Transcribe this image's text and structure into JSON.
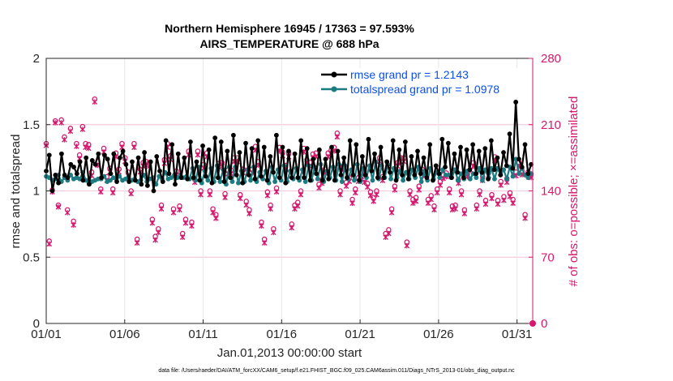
{
  "chart_data": {
    "type": "line",
    "title": "Northern Hemisphere 16945 / 17363 = 97.593%",
    "subtitle": "AIRS_TEMPERATURE @ 688 hPa",
    "xlabel": "Jan.01,2013 00:00:00 start",
    "ylabel": "rmse and totalspread",
    "y2label": "# of obs: o=possible; ×=assimilated",
    "xlim": [
      0,
      31
    ],
    "ylim": [
      0,
      2
    ],
    "y2lim": [
      0,
      280
    ],
    "x_ticks": [
      0,
      5,
      10,
      15,
      20,
      25,
      30
    ],
    "x_tick_labels": [
      "01/01",
      "01/06",
      "01/11",
      "01/16",
      "01/21",
      "01/26",
      "01/31"
    ],
    "y_ticks": [
      0,
      0.5,
      1,
      1.5,
      2
    ],
    "y_tick_labels": [
      "0",
      "0.5",
      "1",
      "1.5",
      "2"
    ],
    "y2_ticks": [
      0,
      70,
      140,
      210,
      280
    ],
    "y2_tick_labels": [
      "0",
      "70",
      "140",
      "210",
      "280"
    ],
    "grid": true,
    "legend_position": "top-right",
    "series": [
      {
        "name": "rmse grand pr = 1.2143",
        "axis": "left",
        "color": "#000000",
        "values": [
          1.15,
          1.27,
          1.0,
          1.12,
          1.06,
          1.28,
          1.12,
          1.1,
          1.2,
          1.18,
          1.13,
          1.22,
          1.08,
          1.25,
          1.05,
          1.23,
          1.2,
          1.28,
          1.1,
          1.27,
          1.24,
          1.13,
          1.28,
          1.07,
          1.25,
          1.3,
          1.2,
          1.07,
          1.22,
          1.08,
          1.25,
          1.05,
          1.29,
          1.04,
          1.22,
          1.0,
          1.26,
          1.15,
          1.07,
          1.38,
          1.13,
          1.35,
          1.05,
          1.28,
          1.1,
          1.25,
          1.09,
          1.37,
          1.1,
          1.22,
          1.08,
          1.34,
          1.11,
          1.31,
          1.06,
          1.4,
          1.1,
          1.37,
          1.07,
          1.3,
          1.1,
          1.42,
          1.12,
          1.29,
          1.06,
          1.36,
          1.12,
          1.32,
          1.09,
          1.38,
          1.11,
          1.33,
          1.08,
          1.26,
          1.14,
          1.42,
          1.1,
          1.33,
          1.06,
          1.3,
          1.1,
          1.28,
          1.1,
          1.38,
          1.1,
          1.32,
          1.08,
          1.24,
          1.13,
          1.31,
          1.08,
          1.24,
          1.09,
          1.33,
          1.08,
          1.3,
          1.12,
          1.25,
          1.1,
          1.38,
          1.12,
          1.35,
          1.08,
          1.26,
          1.12,
          1.39,
          1.15,
          1.28,
          1.1,
          1.33,
          1.1,
          1.22,
          1.14,
          1.38,
          1.08,
          1.31,
          1.12,
          1.37,
          1.09,
          1.26,
          1.12,
          1.3,
          1.13,
          1.25,
          1.1,
          1.35,
          1.08,
          1.19,
          1.13,
          1.39,
          1.18,
          1.36,
          1.1,
          1.28,
          1.14,
          1.33,
          1.1,
          1.31,
          1.16,
          1.35,
          1.13,
          1.3,
          1.14,
          1.32,
          1.09,
          1.38,
          1.16,
          1.25,
          1.12,
          1.29,
          1.19,
          1.43,
          1.17,
          1.67,
          1.24,
          1.18,
          1.35,
          1.13,
          1.2
        ]
      },
      {
        "name": "totalspread grand pr = 1.0978",
        "axis": "left",
        "color": "#1b7b80",
        "values": [
          1.11,
          1.1,
          1.08,
          1.09,
          1.12,
          1.07,
          1.1,
          1.08,
          1.12,
          1.09,
          1.1,
          1.09,
          1.14,
          1.08,
          1.06,
          1.07,
          1.08,
          1.09,
          1.09,
          1.11,
          1.07,
          1.08,
          1.1,
          1.09,
          1.11,
          1.08,
          1.09,
          1.11,
          1.08,
          1.09,
          1.07,
          1.08,
          1.12,
          1.07,
          1.09,
          1.1,
          1.05,
          1.11,
          1.09,
          1.14,
          1.09,
          1.1,
          1.12,
          1.1,
          1.12,
          1.1,
          1.11,
          1.09,
          1.17,
          1.08,
          1.18,
          1.06,
          1.15,
          1.08,
          1.17,
          1.07,
          1.19,
          1.07,
          1.16,
          1.05,
          1.18,
          1.07,
          1.18,
          1.06,
          1.15,
          1.07,
          1.16,
          1.08,
          1.18,
          1.07,
          1.14,
          1.09,
          1.15,
          1.06,
          1.18,
          1.07,
          1.16,
          1.08,
          1.19,
          1.07,
          1.15,
          1.09,
          1.17,
          1.08,
          1.16,
          1.07,
          1.19,
          1.08,
          1.18,
          1.09,
          1.2,
          1.07,
          1.15,
          1.1,
          1.18,
          1.08,
          1.2,
          1.07,
          1.19,
          1.09,
          1.16,
          1.08,
          1.2,
          1.07,
          1.17,
          1.1,
          1.19,
          1.08,
          1.22,
          1.09,
          1.19,
          1.1,
          1.2,
          1.09,
          1.17,
          1.1,
          1.15,
          1.08,
          1.14,
          1.09,
          1.16,
          1.1,
          1.18,
          1.07,
          1.15,
          1.08,
          1.17,
          1.09,
          1.14,
          1.1,
          1.16,
          1.12,
          1.12,
          1.1,
          1.16,
          1.08,
          1.13,
          1.09,
          1.15,
          1.09,
          1.13,
          1.1,
          1.17,
          1.08,
          1.16,
          1.1,
          1.17,
          1.09,
          1.17,
          1.12,
          1.16,
          1.09,
          1.18,
          1.11,
          1.24,
          1.13,
          1.17,
          1.12,
          1.1,
          1.13
        ]
      },
      {
        "name": "obs possible",
        "axis": "right",
        "color": "#d6186f",
        "marker": "circle",
        "values": [
          190,
          87,
          141,
          214,
          125,
          215,
          197,
          120,
          206,
          108,
          190,
          178,
          208,
          190,
          189,
          160,
          237,
          171,
          142,
          185,
          155,
          164,
          142,
          180,
          163,
          190,
          175,
          160,
          140,
          190,
          89,
          163,
          170,
          171,
          170,
          110,
          92,
          100,
          125,
          173,
          190,
          177,
          121,
          161,
          124,
          95,
          110,
          182,
          107,
          153,
          182,
          140,
          168,
          180,
          140,
          121,
          115,
          169,
          170,
          137,
          162,
          162,
          175,
          175,
          136,
          163,
          129,
          120,
          163,
          187,
          171,
          107,
          89,
          139,
          125,
          100,
          143,
          186,
          181,
          167,
          180,
          105,
          125,
          128,
          140,
          185,
          173,
          170,
          179,
          180,
          147,
          152,
          163,
          180,
          183,
          186,
          201,
          140,
          166,
          149,
          154,
          131,
          142,
          154,
          159,
          153,
          148,
          139,
          133,
          140,
          175,
          155,
          95,
          99,
          121,
          145,
          170,
          175,
          175,
          86,
          140,
          131,
          133,
          145,
          163,
          160,
          131,
          135,
          124,
          142,
          150,
          157,
          159,
          142,
          124,
          125,
          152,
          140,
          120,
          159,
          166,
          170,
          125,
          140,
          155,
          130,
          160,
          136,
          176,
          130,
          150,
          134,
          153,
          138,
          131,
          160,
          170,
          161,
          115,
          160,
          158
        ]
      },
      {
        "name": "obs assimilated",
        "axis": "right",
        "color": "#d6186f",
        "marker": "x",
        "values": [
          188,
          84,
          139,
          212,
          123,
          212,
          194,
          117,
          203,
          104,
          187,
          174,
          205,
          186,
          185,
          156,
          234,
          167,
          139,
          181,
          151,
          160,
          138,
          176,
          160,
          186,
          171,
          156,
          137,
          186,
          85,
          160,
          166,
          167,
          166,
          106,
          88,
          96,
          121,
          169,
          186,
          173,
          117,
          157,
          120,
          91,
          106,
          178,
          103,
          149,
          178,
          136,
          164,
          176,
          136,
          117,
          111,
          165,
          166,
          133,
          158,
          158,
          171,
          171,
          132,
          159,
          125,
          116,
          159,
          183,
          167,
          103,
          85,
          135,
          121,
          96,
          139,
          182,
          177,
          163,
          176,
          101,
          121,
          124,
          136,
          181,
          169,
          166,
          175,
          176,
          143,
          148,
          159,
          176,
          179,
          182,
          197,
          136,
          162,
          145,
          150,
          127,
          138,
          150,
          155,
          149,
          144,
          135,
          129,
          136,
          171,
          151,
          91,
          95,
          117,
          141,
          166,
          171,
          171,
          82,
          136,
          127,
          129,
          141,
          159,
          156,
          127,
          131,
          120,
          138,
          146,
          153,
          155,
          138,
          120,
          121,
          148,
          136,
          116,
          155,
          162,
          166,
          121,
          136,
          151,
          126,
          156,
          132,
          172,
          126,
          146,
          130,
          149,
          134,
          127,
          156,
          166,
          157,
          111,
          156,
          154
        ]
      }
    ],
    "right_axis_end_marker": 0
  },
  "footer": {
    "data_file": "data file: /Users/raeder/DAI/ATM_forcXX/CAM6_setup/f.e21.FHIST_BGC.f09_025.CAM6assim.011/Diags_NTrS_2013-01/obs_diag_output.nc"
  }
}
